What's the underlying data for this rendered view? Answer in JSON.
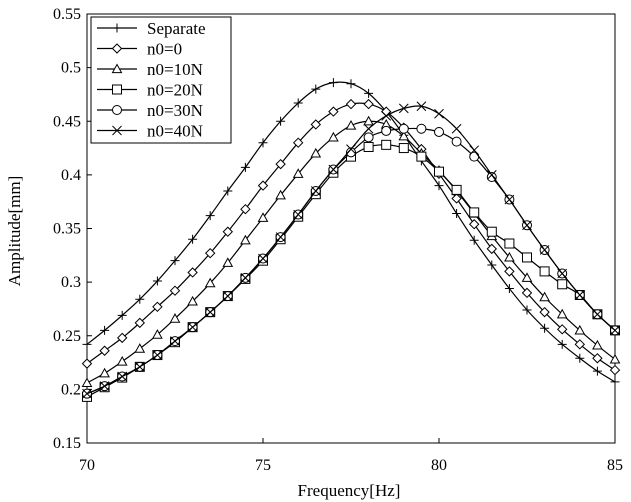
{
  "chart_data": {
    "type": "line",
    "title": "",
    "xlabel": "Frequency[Hz]",
    "ylabel": "Amplitude[mm]",
    "xlim": [
      70,
      85
    ],
    "ylim": [
      0.15,
      0.55
    ],
    "xticks": [
      70,
      75,
      80,
      85
    ],
    "yticks": [
      0.15,
      0.2,
      0.25,
      0.3,
      0.35,
      0.4,
      0.45,
      0.5,
      0.55
    ],
    "xtick_labels": [
      "70",
      "75",
      "80",
      "85"
    ],
    "ytick_labels": [
      "0.15",
      "0.2",
      "0.25",
      "0.3",
      "0.35",
      "0.4",
      "0.45",
      "0.5",
      "0.55"
    ],
    "grid": false,
    "legend_position": "top-left",
    "series": [
      {
        "name": "Separate",
        "marker": "plus",
        "x": [
          70,
          70.5,
          71,
          71.5,
          72,
          72.5,
          73,
          73.5,
          74,
          74.5,
          75,
          75.5,
          76,
          76.5,
          77,
          77.5,
          78,
          78.5,
          79,
          79.5,
          80,
          80.5,
          81,
          81.5,
          82,
          82.5,
          83,
          83.5,
          84,
          84.5,
          85
        ],
        "values": [
          0.242,
          0.255,
          0.269,
          0.284,
          0.301,
          0.32,
          0.34,
          0.362,
          0.385,
          0.407,
          0.43,
          0.45,
          0.467,
          0.48,
          0.486,
          0.485,
          0.476,
          0.459,
          0.437,
          0.413,
          0.39,
          0.364,
          0.339,
          0.316,
          0.294,
          0.274,
          0.257,
          0.242,
          0.229,
          0.217,
          0.207
        ]
      },
      {
        "name": "n0=0",
        "marker": "diamond",
        "x": [
          70,
          70.5,
          71,
          71.5,
          72,
          72.5,
          73,
          73.5,
          74,
          74.5,
          75,
          75.5,
          76,
          76.5,
          77,
          77.5,
          78,
          78.5,
          79,
          79.5,
          80,
          80.5,
          81,
          81.5,
          82,
          82.5,
          83,
          83.5,
          84,
          84.5,
          85
        ],
        "values": [
          0.224,
          0.236,
          0.248,
          0.262,
          0.277,
          0.292,
          0.309,
          0.327,
          0.347,
          0.368,
          0.39,
          0.41,
          0.43,
          0.447,
          0.459,
          0.466,
          0.466,
          0.459,
          0.444,
          0.424,
          0.401,
          0.378,
          0.354,
          0.331,
          0.31,
          0.29,
          0.272,
          0.256,
          0.242,
          0.229,
          0.218
        ]
      },
      {
        "name": "n0=10N",
        "marker": "triangle",
        "x": [
          70,
          70.5,
          71,
          71.5,
          72,
          72.5,
          73,
          73.5,
          74,
          74.5,
          75,
          75.5,
          76,
          76.5,
          77,
          77.5,
          78,
          78.5,
          79,
          79.5,
          80,
          80.5,
          81,
          81.5,
          82,
          82.5,
          83,
          83.5,
          84,
          84.5,
          85
        ],
        "values": [
          0.206,
          0.215,
          0.226,
          0.238,
          0.251,
          0.266,
          0.282,
          0.299,
          0.318,
          0.339,
          0.36,
          0.381,
          0.401,
          0.42,
          0.435,
          0.446,
          0.45,
          0.447,
          0.436,
          0.42,
          0.404,
          0.385,
          0.364,
          0.343,
          0.323,
          0.304,
          0.286,
          0.27,
          0.255,
          0.241,
          0.228
        ]
      },
      {
        "name": "n0=20N",
        "marker": "square",
        "x": [
          70,
          70.5,
          71,
          71.5,
          72,
          72.5,
          73,
          73.5,
          74,
          74.5,
          75,
          75.5,
          76,
          76.5,
          77,
          77.5,
          78,
          78.5,
          79,
          79.5,
          80,
          80.5,
          81,
          81.5,
          82,
          82.5,
          83,
          83.5,
          84,
          84.5,
          85
        ],
        "values": [
          0.193,
          0.202,
          0.211,
          0.221,
          0.232,
          0.244,
          0.258,
          0.272,
          0.287,
          0.303,
          0.32,
          0.34,
          0.361,
          0.382,
          0.402,
          0.417,
          0.426,
          0.428,
          0.425,
          0.417,
          0.403,
          0.386,
          0.365,
          0.347,
          0.336,
          0.323,
          0.31,
          0.298,
          0.288,
          0.27,
          0.255
        ]
      },
      {
        "name": "n0=30N",
        "marker": "circle",
        "x": [
          70,
          70.5,
          71,
          71.5,
          72,
          72.5,
          73,
          73.5,
          74,
          74.5,
          75,
          75.5,
          76,
          76.5,
          77,
          77.5,
          78,
          78.5,
          79,
          79.5,
          80,
          80.5,
          81,
          81.5,
          82,
          82.5,
          83,
          83.5,
          84,
          84.5,
          85
        ],
        "values": [
          0.196,
          0.203,
          0.212,
          0.221,
          0.232,
          0.245,
          0.258,
          0.272,
          0.287,
          0.304,
          0.322,
          0.342,
          0.363,
          0.385,
          0.405,
          0.421,
          0.435,
          0.441,
          0.443,
          0.443,
          0.44,
          0.431,
          0.417,
          0.398,
          0.377,
          0.353,
          0.33,
          0.308,
          0.288,
          0.27,
          0.255
        ]
      },
      {
        "name": "n0=40N",
        "marker": "x",
        "x": [
          70,
          70.5,
          71,
          71.5,
          72,
          72.5,
          73,
          73.5,
          74,
          74.5,
          75,
          75.5,
          76,
          76.5,
          77,
          77.5,
          78,
          78.5,
          79,
          79.5,
          80,
          80.5,
          81,
          81.5,
          82,
          82.5,
          83,
          83.5,
          84,
          84.5,
          85
        ],
        "values": [
          0.196,
          0.203,
          0.212,
          0.221,
          0.232,
          0.245,
          0.258,
          0.272,
          0.287,
          0.304,
          0.322,
          0.342,
          0.363,
          0.385,
          0.405,
          0.424,
          0.443,
          0.455,
          0.462,
          0.464,
          0.457,
          0.443,
          0.423,
          0.4,
          0.377,
          0.353,
          0.33,
          0.308,
          0.288,
          0.27,
          0.255
        ]
      }
    ]
  }
}
